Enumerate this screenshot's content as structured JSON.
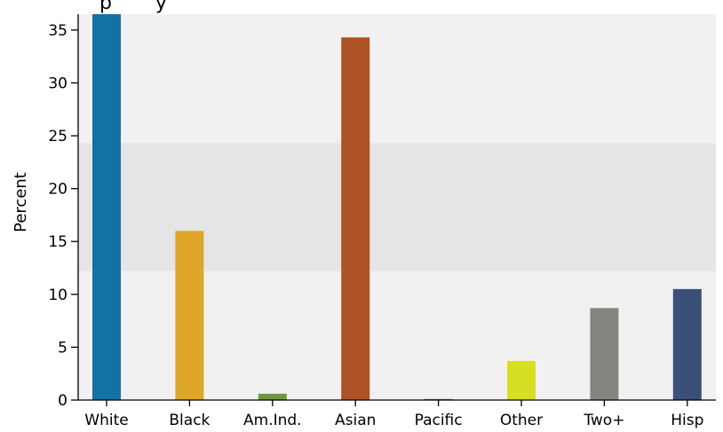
{
  "chart_data": {
    "type": "bar",
    "title": "",
    "title_partial_visible": "p       y",
    "ylabel": "Percent",
    "xlabel": "",
    "categories": [
      "White",
      "Black",
      "Am.Ind.",
      "Asian",
      "Pacific",
      "Other",
      "Two+",
      "Hisp"
    ],
    "values": [
      37.0,
      16.0,
      0.6,
      34.3,
      0.1,
      3.7,
      8.7,
      10.5
    ],
    "ylim": [
      0,
      36.5
    ],
    "yticks": [
      0,
      5,
      10,
      15,
      20,
      25,
      30,
      35
    ],
    "highlight_band": [
      12.2,
      24.3
    ],
    "colors": [
      "#1471a3",
      "#dfa729",
      "#6a9a3d",
      "#ad5325",
      "#4f7f3a",
      "#d8de22",
      "#858580",
      "#3b5078"
    ],
    "background_color": "#f1f1f1",
    "band_color": "#e5e5e5",
    "grid": false,
    "legend": "none"
  }
}
